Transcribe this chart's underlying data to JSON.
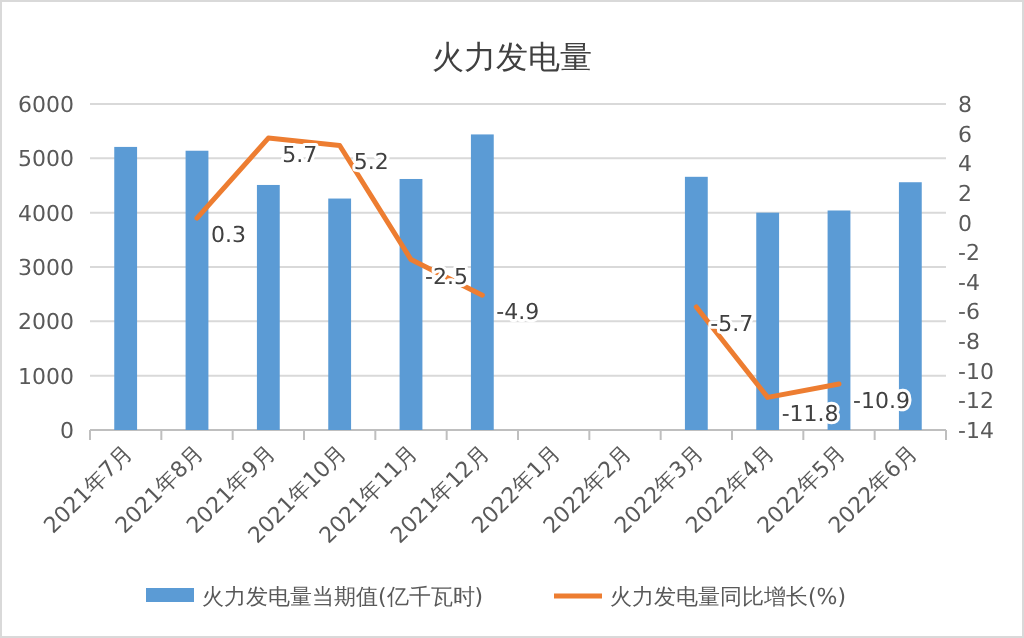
{
  "chart_data": {
    "type": "bar",
    "title": "火力发电量",
    "categories": [
      "2021年7月",
      "2021年8月",
      "2021年9月",
      "2021年10月",
      "2021年11月",
      "2021年12月",
      "2022年1月",
      "2022年2月",
      "2022年3月",
      "2022年4月",
      "2022年5月",
      "2022年6月"
    ],
    "series": [
      {
        "name": "火力发电量当期值(亿千瓦时)",
        "color": "#5b9bd5",
        "values": [
          5210,
          5140,
          4510,
          4260,
          4620,
          5440,
          null,
          null,
          4660,
          4000,
          4040,
          4560
        ]
      },
      {
        "name": "火力发电量同比增长(%)",
        "type": "line",
        "axis": "y2",
        "color": "#ed7d31",
        "values": [
          null,
          0.3,
          5.7,
          5.2,
          -2.5,
          -4.9,
          null,
          null,
          -5.7,
          -11.8,
          -10.9,
          null
        ],
        "value_labels": [
          null,
          "0.3",
          "5.7",
          "5.2",
          "-2.5",
          "-4.9",
          null,
          null,
          "-5.7",
          "-11.8",
          "-10.9",
          null
        ]
      }
    ],
    "ylim": [
      0,
      6000
    ],
    "yticks": [
      0,
      1000,
      2000,
      3000,
      4000,
      5000,
      6000
    ],
    "y2lim": [
      -14,
      8
    ],
    "y2ticks": [
      -14,
      -12,
      -10,
      -8,
      -6,
      -4,
      -2,
      0,
      2,
      4,
      6,
      8
    ],
    "grid": "y",
    "legend": "bottom",
    "marker": "none"
  }
}
